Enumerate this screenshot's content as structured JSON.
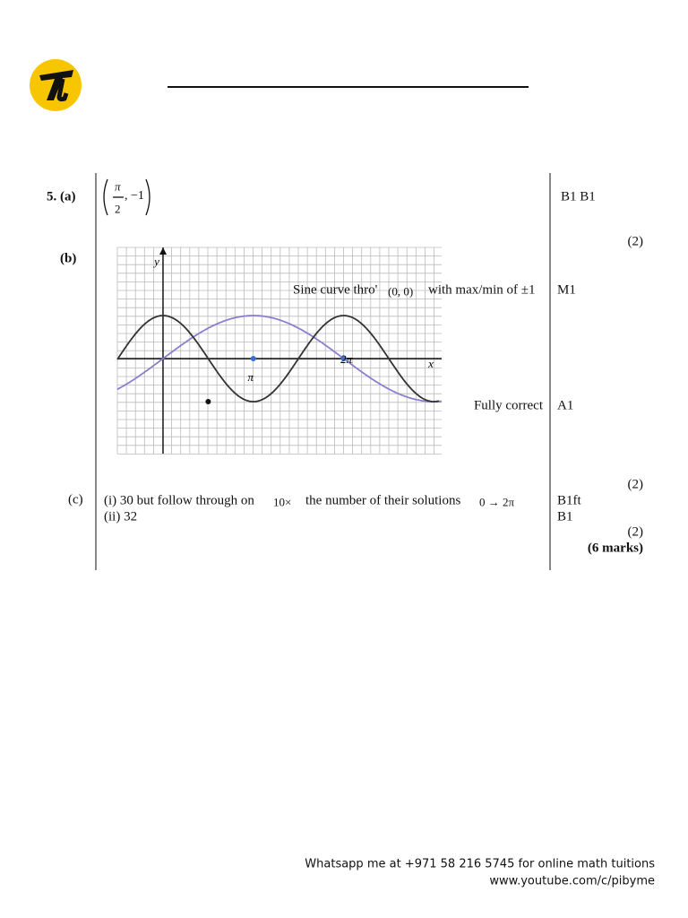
{
  "part_a": {
    "label": "5. (a)",
    "answer": {
      "numerator": "π",
      "denominator": "2",
      "value": ", −1"
    },
    "marks": "B1 B1",
    "total": "(2)"
  },
  "part_b": {
    "label": "(b)",
    "graph": {
      "y_axis": "y",
      "x_axis": "x",
      "tick_pi": "π",
      "tick_2pi": "2π"
    },
    "criteria": [
      {
        "text": [
          "Sine curve thro'",
          "(0, 0)",
          "with max/min of ±1"
        ],
        "mark": "M1"
      },
      {
        "text": [
          "Fully correct"
        ],
        "mark": "A1"
      }
    ],
    "total": "(2)"
  },
  "part_c": {
    "label": "(c)",
    "lines": [
      {
        "text": [
          "(i)  30 but follow through on",
          "10×",
          "the number of their solutions",
          "0 → 2π"
        ],
        "mark": "B1ft"
      },
      {
        "text": [
          "(ii)  32"
        ],
        "mark": "B1"
      }
    ],
    "total": "(2)",
    "grand_total": "(6 marks)"
  },
  "footer": {
    "line1": "Whatsapp me at +971 58 216 5745 for online math tuitions",
    "line2": "www.youtube.com/c/pibyme"
  }
}
